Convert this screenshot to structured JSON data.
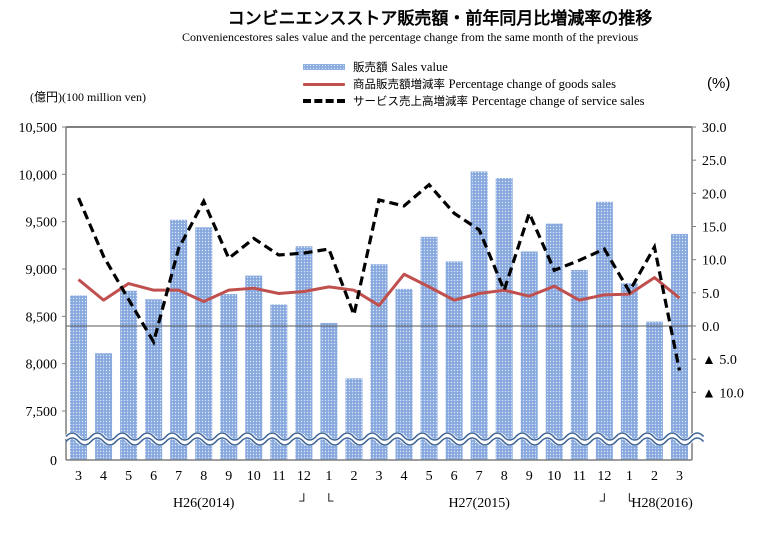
{
  "title": "コンビニエンスストア販売額・前年同月比増減率の推移",
  "subtitle": "Conveniencestores sales value and the percentage change from the same month of the previous",
  "unit_left": "(億円)(100 million ven)",
  "unit_right": "(%)",
  "legend": [
    {
      "jp": "販売額",
      "en": "Sales value",
      "style": "bar"
    },
    {
      "jp": "商品販売額増減率",
      "en": "Percentage change of goods sales",
      "style": "red-line"
    },
    {
      "jp": "サービス売上高増減率",
      "en": "Percentage change of service sales",
      "style": "black-dashed"
    }
  ],
  "chart_data": {
    "type": "bar",
    "title": "コンビニエンスストア販売額・前年同月比増減率の推移",
    "subtitle": "Conveniencestores sales value and the percentage change from the same month of the previous",
    "categories": [
      "3",
      "4",
      "5",
      "6",
      "7",
      "8",
      "9",
      "10",
      "11",
      "12",
      "1",
      "2",
      "3",
      "4",
      "5",
      "6",
      "7",
      "8",
      "9",
      "10",
      "11",
      "12",
      "1",
      "2",
      "3"
    ],
    "year_labels": [
      {
        "label": "H26(2014)",
        "at_category": 5
      },
      {
        "label": "H27(2015)",
        "at_category": 16
      },
      {
        "label": "H28(2016)",
        "at_category": 23
      }
    ],
    "year_separators": [
      {
        "mark": "┘",
        "at_category": 9
      },
      {
        "mark": "└",
        "at_category": 10
      },
      {
        "mark": "┘",
        "at_category": 21
      },
      {
        "mark": "└",
        "at_category": 22
      }
    ],
    "series": [
      {
        "name": "販売額 Sales value",
        "type": "bar",
        "axis": "left",
        "color": "#8eaee0",
        "values": [
          8720,
          8110,
          8770,
          8680,
          9520,
          9440,
          8735,
          8930,
          8625,
          9240,
          8430,
          7845,
          9050,
          8790,
          9340,
          9080,
          10030,
          9960,
          9185,
          9480,
          8990,
          9710,
          8850,
          8445,
          9370
        ]
      },
      {
        "name": "商品販売額増減率 Percentage change of goods sales",
        "type": "line",
        "axis": "right",
        "color": "#c0504d",
        "values": [
          7.0,
          3.9,
          6.4,
          5.4,
          5.4,
          3.7,
          5.4,
          5.7,
          4.9,
          5.2,
          5.9,
          5.4,
          3.1,
          7.8,
          5.9,
          3.9,
          4.9,
          5.4,
          4.5,
          6.0,
          3.9,
          4.7,
          4.8,
          7.3,
          4.2
        ]
      },
      {
        "name": "サービス売上高増減率 Percentage change of service sales",
        "type": "line",
        "style": "dashed",
        "axis": "right",
        "color": "#000000",
        "values": [
          19.3,
          10.5,
          4.0,
          -2.4,
          11.7,
          18.8,
          10.2,
          13.2,
          10.7,
          11.0,
          11.6,
          1.7,
          19.0,
          18.1,
          21.3,
          17.0,
          14.5,
          5.4,
          17.0,
          8.4,
          9.9,
          11.6,
          5.2,
          11.9,
          -6.7
        ]
      }
    ],
    "left_axis": {
      "label": "(億円)(100 million ven)",
      "ticks": [
        "10,500",
        "10,000",
        "9,500",
        "9,000",
        "8,500",
        "8,000",
        "7,500",
        "0"
      ],
      "tick_values": [
        10500,
        10000,
        9500,
        9000,
        8500,
        8000,
        7500,
        0
      ],
      "broken_range": [
        7500,
        10500
      ],
      "has_axis_break": true
    },
    "right_axis": {
      "label": "(%)",
      "ticks": [
        "30.0",
        "25.0",
        "20.0",
        "15.0",
        "10.0",
        "5.0",
        "0.0",
        "▲ 5.0",
        "▲ 10.0"
      ],
      "tick_values": [
        30,
        25,
        20,
        15,
        10,
        5,
        0,
        -5,
        -10
      ],
      "ylim": [
        -10,
        30
      ]
    },
    "grid": false,
    "zero_line": true,
    "legend_position": "top-center"
  }
}
